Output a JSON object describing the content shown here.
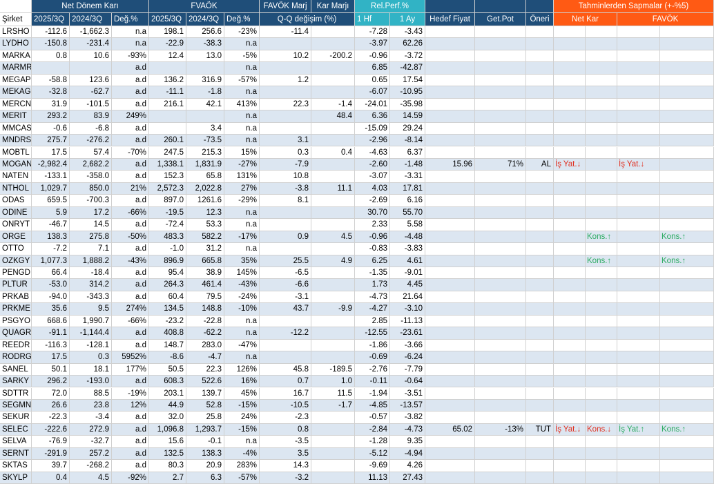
{
  "header_top": {
    "net_donem_kari": "Net Dönem Karı",
    "favok": "FVAÖK",
    "favok_marj": "FAVÖK Marj",
    "kar_marji": "Kar Marjı",
    "rel_perf": "Rel.Perf.%",
    "tahmin": "Tahminlerden Sapmalar (+-%5)"
  },
  "header_sub": {
    "sirket": "Şirket",
    "ndk_2025": "2025/3Q",
    "ndk_2024": "2024/3Q",
    "ndk_deg": "Değ.%",
    "fav_2025": "2025/3Q",
    "fav_2024": "2024/3Q",
    "fav_deg": "Değ.%",
    "qq": "Q-Q değişim (%)",
    "hf": "1 Hf",
    "ay": "1 Ay",
    "hedef": "Hedef Fiyat",
    "getpot": "Get.Pot",
    "oneri": "Öneri",
    "netkar": "Net Kar",
    "favok2": "FAVÖK"
  },
  "rows": [
    {
      "t": "LRSHO",
      "a": "-112.6",
      "b": "-1,662.3",
      "c": "n.a",
      "d": "198.1",
      "e": "256.6",
      "f": "-23%",
      "g": "-11.4",
      "h": "",
      "i": "-7.28",
      "j": "-3.43",
      "k": "",
      "l": "",
      "m": "",
      "n1": "",
      "n2": "",
      "f1": "",
      "f2": ""
    },
    {
      "t": "LYDHO",
      "a": "-150.8",
      "b": "-231.4",
      "c": "n.a",
      "d": "-22.9",
      "e": "-38.3",
      "f": "n.a",
      "g": "",
      "h": "",
      "i": "-3.97",
      "j": "62.26",
      "k": "",
      "l": "",
      "m": "",
      "n1": "",
      "n2": "",
      "f1": "",
      "f2": ""
    },
    {
      "t": "MARKA",
      "a": "0.8",
      "b": "10.6",
      "c": "-93%",
      "d": "12.4",
      "e": "13.0",
      "f": "-5%",
      "g": "10.2",
      "h": "-200.2",
      "i": "-0.96",
      "j": "-3.72",
      "k": "",
      "l": "",
      "m": "",
      "n1": "",
      "n2": "",
      "f1": "",
      "f2": ""
    },
    {
      "t": "MARMR",
      "a": "",
      "b": "",
      "c": "a.d",
      "d": "",
      "e": "",
      "f": "n.a",
      "g": "",
      "h": "",
      "i": "6.85",
      "j": "-42.87",
      "k": "",
      "l": "",
      "m": "",
      "n1": "",
      "n2": "",
      "f1": "",
      "f2": ""
    },
    {
      "t": "MEGAP",
      "a": "-58.8",
      "b": "123.6",
      "c": "a.d",
      "d": "136.2",
      "e": "316.9",
      "f": "-57%",
      "g": "1.2",
      "h": "",
      "i": "0.65",
      "j": "17.54",
      "k": "",
      "l": "",
      "m": "",
      "n1": "",
      "n2": "",
      "f1": "",
      "f2": ""
    },
    {
      "t": "MEKAG",
      "a": "-32.8",
      "b": "-62.7",
      "c": "a.d",
      "d": "-11.1",
      "e": "-1.8",
      "f": "n.a",
      "g": "",
      "h": "",
      "i": "-6.07",
      "j": "-10.95",
      "k": "",
      "l": "",
      "m": "",
      "n1": "",
      "n2": "",
      "f1": "",
      "f2": ""
    },
    {
      "t": "MERCN",
      "a": "31.9",
      "b": "-101.5",
      "c": "a.d",
      "d": "216.1",
      "e": "42.1",
      "f": "413%",
      "g": "22.3",
      "h": "-1.4",
      "i": "-24.01",
      "j": "-35.98",
      "k": "",
      "l": "",
      "m": "",
      "n1": "",
      "n2": "",
      "f1": "",
      "f2": ""
    },
    {
      "t": "MERIT",
      "a": "293.2",
      "b": "83.9",
      "c": "249%",
      "d": "",
      "e": "",
      "f": "n.a",
      "g": "",
      "h": "48.4",
      "i": "6.36",
      "j": "14.59",
      "k": "",
      "l": "",
      "m": "",
      "n1": "",
      "n2": "",
      "f1": "",
      "f2": ""
    },
    {
      "t": "MMCAS",
      "a": "-0.6",
      "b": "-6.8",
      "c": "a.d",
      "d": "",
      "e": "3.4",
      "f": "n.a",
      "g": "",
      "h": "",
      "i": "-15.09",
      "j": "29.24",
      "k": "",
      "l": "",
      "m": "",
      "n1": "",
      "n2": "",
      "f1": "",
      "f2": ""
    },
    {
      "t": "MNDRS",
      "a": "275.7",
      "b": "-276.2",
      "c": "a.d",
      "d": "260.1",
      "e": "-73.5",
      "f": "n.a",
      "g": "3.1",
      "h": "",
      "i": "-2.96",
      "j": "-8.14",
      "k": "",
      "l": "",
      "m": "",
      "n1": "",
      "n2": "",
      "f1": "",
      "f2": ""
    },
    {
      "t": "MOBTL",
      "a": "17.5",
      "b": "57.4",
      "c": "-70%",
      "d": "247.5",
      "e": "215.3",
      "f": "15%",
      "g": "0.3",
      "h": "0.4",
      "i": "-4.63",
      "j": "6.37",
      "k": "",
      "l": "",
      "m": "",
      "n1": "",
      "n2": "",
      "f1": "",
      "f2": ""
    },
    {
      "t": "MOGAN",
      "a": "-2,982.4",
      "b": "2,682.2",
      "c": "a.d",
      "d": "1,338.1",
      "e": "1,831.9",
      "f": "-27%",
      "g": "-7.9",
      "h": "",
      "i": "-2.60",
      "j": "-1.48",
      "k": "15.96",
      "l": "71%",
      "m": "AL",
      "n1": "İş Yat.↓",
      "n2": "",
      "f1": "İş Yat.↓",
      "f2": ""
    },
    {
      "t": "NATEN",
      "a": "-133.1",
      "b": "-358.0",
      "c": "a.d",
      "d": "152.3",
      "e": "65.8",
      "f": "131%",
      "g": "10.8",
      "h": "",
      "i": "-3.07",
      "j": "-3.31",
      "k": "",
      "l": "",
      "m": "",
      "n1": "",
      "n2": "",
      "f1": "",
      "f2": ""
    },
    {
      "t": "NTHOL",
      "a": "1,029.7",
      "b": "850.0",
      "c": "21%",
      "d": "2,572.3",
      "e": "2,022.8",
      "f": "27%",
      "g": "-3.8",
      "h": "11.1",
      "i": "4.03",
      "j": "17.81",
      "k": "",
      "l": "",
      "m": "",
      "n1": "",
      "n2": "",
      "f1": "",
      "f2": ""
    },
    {
      "t": "ODAS",
      "a": "659.5",
      "b": "-700.3",
      "c": "a.d",
      "d": "897.0",
      "e": "1261.6",
      "f": "-29%",
      "g": "8.1",
      "h": "",
      "i": "-2.69",
      "j": "6.16",
      "k": "",
      "l": "",
      "m": "",
      "n1": "",
      "n2": "",
      "f1": "",
      "f2": ""
    },
    {
      "t": "ODINE",
      "a": "5.9",
      "b": "17.2",
      "c": "-66%",
      "d": "-19.5",
      "e": "12.3",
      "f": "n.a",
      "g": "",
      "h": "",
      "i": "30.70",
      "j": "55.70",
      "k": "",
      "l": "",
      "m": "",
      "n1": "",
      "n2": "",
      "f1": "",
      "f2": ""
    },
    {
      "t": "ONRYT",
      "a": "-46.7",
      "b": "14.5",
      "c": "a.d",
      "d": "-72.4",
      "e": "53.3",
      "f": "n.a",
      "g": "",
      "h": "",
      "i": "2.33",
      "j": "5.58",
      "k": "",
      "l": "",
      "m": "",
      "n1": "",
      "n2": "",
      "f1": "",
      "f2": ""
    },
    {
      "t": "ORGE",
      "a": "138.3",
      "b": "275.8",
      "c": "-50%",
      "d": "483.3",
      "e": "582.2",
      "f": "-17%",
      "g": "0.9",
      "h": "4.5",
      "i": "-0.96",
      "j": "-4.48",
      "k": "",
      "l": "",
      "m": "",
      "n1": "",
      "n2": "Kons.↑",
      "f1": "",
      "f2": "Kons.↑"
    },
    {
      "t": "OTTO",
      "a": "-7.2",
      "b": "7.1",
      "c": "a.d",
      "d": "-1.0",
      "e": "31.2",
      "f": "n.a",
      "g": "",
      "h": "",
      "i": "-0.83",
      "j": "-3.83",
      "k": "",
      "l": "",
      "m": "",
      "n1": "",
      "n2": "",
      "f1": "",
      "f2": ""
    },
    {
      "t": "OZKGY",
      "a": "1,077.3",
      "b": "1,888.2",
      "c": "-43%",
      "d": "896.9",
      "e": "665.8",
      "f": "35%",
      "g": "25.5",
      "h": "4.9",
      "i": "6.25",
      "j": "4.61",
      "k": "",
      "l": "",
      "m": "",
      "n1": "",
      "n2": "Kons.↑",
      "f1": "",
      "f2": "Kons.↑"
    },
    {
      "t": "PENGD",
      "a": "66.4",
      "b": "-18.4",
      "c": "a.d",
      "d": "95.4",
      "e": "38.9",
      "f": "145%",
      "g": "-6.5",
      "h": "",
      "i": "-1.35",
      "j": "-9.01",
      "k": "",
      "l": "",
      "m": "",
      "n1": "",
      "n2": "",
      "f1": "",
      "f2": ""
    },
    {
      "t": "PLTUR",
      "a": "-53.0",
      "b": "314.2",
      "c": "a.d",
      "d": "264.3",
      "e": "461.4",
      "f": "-43%",
      "g": "-6.6",
      "h": "",
      "i": "1.73",
      "j": "4.45",
      "k": "",
      "l": "",
      "m": "",
      "n1": "",
      "n2": "",
      "f1": "",
      "f2": ""
    },
    {
      "t": "PRKAB",
      "a": "-94.0",
      "b": "-343.3",
      "c": "a.d",
      "d": "60.4",
      "e": "79.5",
      "f": "-24%",
      "g": "-3.1",
      "h": "",
      "i": "-4.73",
      "j": "21.64",
      "k": "",
      "l": "",
      "m": "",
      "n1": "",
      "n2": "",
      "f1": "",
      "f2": ""
    },
    {
      "t": "PRKME",
      "a": "35.6",
      "b": "9.5",
      "c": "274%",
      "d": "134.5",
      "e": "148.8",
      "f": "-10%",
      "g": "43.7",
      "h": "-9.9",
      "i": "-4.27",
      "j": "-3.10",
      "k": "",
      "l": "",
      "m": "",
      "n1": "",
      "n2": "",
      "f1": "",
      "f2": ""
    },
    {
      "t": "PSGYO",
      "a": "668.6",
      "b": "1,990.7",
      "c": "-66%",
      "d": "-23.2",
      "e": "-22.8",
      "f": "n.a",
      "g": "",
      "h": "",
      "i": "2.85",
      "j": "-11.13",
      "k": "",
      "l": "",
      "m": "",
      "n1": "",
      "n2": "",
      "f1": "",
      "f2": ""
    },
    {
      "t": "QUAGR",
      "a": "-91.1",
      "b": "-1,144.4",
      "c": "a.d",
      "d": "408.8",
      "e": "-62.2",
      "f": "n.a",
      "g": "-12.2",
      "h": "",
      "i": "-12.55",
      "j": "-23.61",
      "k": "",
      "l": "",
      "m": "",
      "n1": "",
      "n2": "",
      "f1": "",
      "f2": ""
    },
    {
      "t": "REEDR",
      "a": "-116.3",
      "b": "-128.1",
      "c": "a.d",
      "d": "148.7",
      "e": "283.0",
      "f": "-47%",
      "g": "",
      "h": "",
      "i": "-1.86",
      "j": "-3.66",
      "k": "",
      "l": "",
      "m": "",
      "n1": "",
      "n2": "",
      "f1": "",
      "f2": ""
    },
    {
      "t": "RODRG",
      "a": "17.5",
      "b": "0.3",
      "c": "5952%",
      "d": "-8.6",
      "e": "-4.7",
      "f": "n.a",
      "g": "",
      "h": "",
      "i": "-0.69",
      "j": "-6.24",
      "k": "",
      "l": "",
      "m": "",
      "n1": "",
      "n2": "",
      "f1": "",
      "f2": ""
    },
    {
      "t": "SANEL",
      "a": "50.1",
      "b": "18.1",
      "c": "177%",
      "d": "50.5",
      "e": "22.3",
      "f": "126%",
      "g": "45.8",
      "h": "-189.5",
      "i": "-2.76",
      "j": "-7.79",
      "k": "",
      "l": "",
      "m": "",
      "n1": "",
      "n2": "",
      "f1": "",
      "f2": ""
    },
    {
      "t": "SARKY",
      "a": "296.2",
      "b": "-193.0",
      "c": "a.d",
      "d": "608.3",
      "e": "522.6",
      "f": "16%",
      "g": "0.7",
      "h": "1.0",
      "i": "-0.11",
      "j": "-0.64",
      "k": "",
      "l": "",
      "m": "",
      "n1": "",
      "n2": "",
      "f1": "",
      "f2": ""
    },
    {
      "t": "SDTTR",
      "a": "72.0",
      "b": "88.5",
      "c": "-19%",
      "d": "203.1",
      "e": "139.7",
      "f": "45%",
      "g": "16.7",
      "h": "11.5",
      "i": "-1.94",
      "j": "-3.51",
      "k": "",
      "l": "",
      "m": "",
      "n1": "",
      "n2": "",
      "f1": "",
      "f2": ""
    },
    {
      "t": "SEGMN",
      "a": "26.6",
      "b": "23.8",
      "c": "12%",
      "d": "44.9",
      "e": "52.8",
      "f": "-15%",
      "g": "-10.5",
      "h": "-1.7",
      "i": "-4.85",
      "j": "-13.57",
      "k": "",
      "l": "",
      "m": "",
      "n1": "",
      "n2": "",
      "f1": "",
      "f2": ""
    },
    {
      "t": "SEKUR",
      "a": "-22.3",
      "b": "-3.4",
      "c": "a.d",
      "d": "32.0",
      "e": "25.8",
      "f": "24%",
      "g": "-2.3",
      "h": "",
      "i": "-0.57",
      "j": "-3.82",
      "k": "",
      "l": "",
      "m": "",
      "n1": "",
      "n2": "",
      "f1": "",
      "f2": ""
    },
    {
      "t": "SELEC",
      "a": "-222.6",
      "b": "272.9",
      "c": "a.d",
      "d": "1,096.8",
      "e": "1,293.7",
      "f": "-15%",
      "g": "0.8",
      "h": "",
      "i": "-2.84",
      "j": "-4.73",
      "k": "65.02",
      "l": "-13%",
      "m": "TUT",
      "n1": "İş Yat.↓",
      "n2": "Kons.↓",
      "f1": "İş Yat.↑",
      "f2": "Kons.↑"
    },
    {
      "t": "SELVA",
      "a": "-76.9",
      "b": "-32.7",
      "c": "a.d",
      "d": "15.6",
      "e": "-0.1",
      "f": "n.a",
      "g": "-3.5",
      "h": "",
      "i": "-1.28",
      "j": "9.35",
      "k": "",
      "l": "",
      "m": "",
      "n1": "",
      "n2": "",
      "f1": "",
      "f2": ""
    },
    {
      "t": "SERNT",
      "a": "-291.9",
      "b": "257.2",
      "c": "a.d",
      "d": "132.5",
      "e": "138.3",
      "f": "-4%",
      "g": "3.5",
      "h": "",
      "i": "-5.12",
      "j": "-4.94",
      "k": "",
      "l": "",
      "m": "",
      "n1": "",
      "n2": "",
      "f1": "",
      "f2": ""
    },
    {
      "t": "SKTAS",
      "a": "39.7",
      "b": "-268.2",
      "c": "a.d",
      "d": "80.3",
      "e": "20.9",
      "f": "283%",
      "g": "14.3",
      "h": "",
      "i": "-9.69",
      "j": "4.26",
      "k": "",
      "l": "",
      "m": "",
      "n1": "",
      "n2": "",
      "f1": "",
      "f2": ""
    },
    {
      "t": "SKYLP",
      "a": "0.4",
      "b": "4.5",
      "c": "-92%",
      "d": "2.7",
      "e": "6.3",
      "f": "-57%",
      "g": "-3.2",
      "h": "",
      "i": "11.13",
      "j": "27.43",
      "k": "",
      "l": "",
      "m": "",
      "n1": "",
      "n2": "",
      "f1": "",
      "f2": ""
    }
  ]
}
